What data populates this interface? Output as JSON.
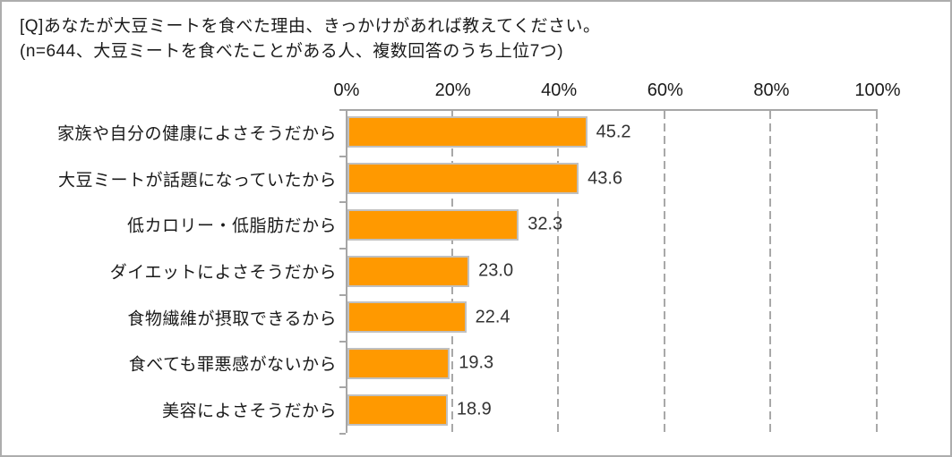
{
  "title": {
    "line1": "[Q]あなたが大豆ミートを食べた理由、きっかけがあれば教えてください。",
    "line2": "(n=644、大豆ミートを食べたことがある人、複数回答のうち上位7つ)"
  },
  "chart_data": {
    "type": "bar",
    "orientation": "horizontal",
    "categories": [
      "家族や自分の健康によさそうだから",
      "大豆ミートが話題になっていたから",
      "低カロリー・低脂肪だから",
      "ダイエットによさそうだから",
      "食物繊維が摂取できるから",
      "食べても罪悪感がないから",
      "美容によさそうだから"
    ],
    "values": [
      45.2,
      43.6,
      32.3,
      23.0,
      22.4,
      19.3,
      18.9
    ],
    "value_labels": [
      "45.2",
      "43.6",
      "32.3",
      "23.0",
      "22.4",
      "19.3",
      "18.9"
    ],
    "x_axis": {
      "ticks": [
        "0%",
        "20%",
        "40%",
        "60%",
        "80%",
        "100%"
      ],
      "min": 0,
      "max": 100
    },
    "legend": "none",
    "gridlines": "dashed-vertical",
    "colors": {
      "bar_fill": "#FF9900",
      "bar_border": "#C0C0C0",
      "axis": "#A6A6A6",
      "grid": "#A8A8A8",
      "text": "#1A1A1A"
    }
  }
}
